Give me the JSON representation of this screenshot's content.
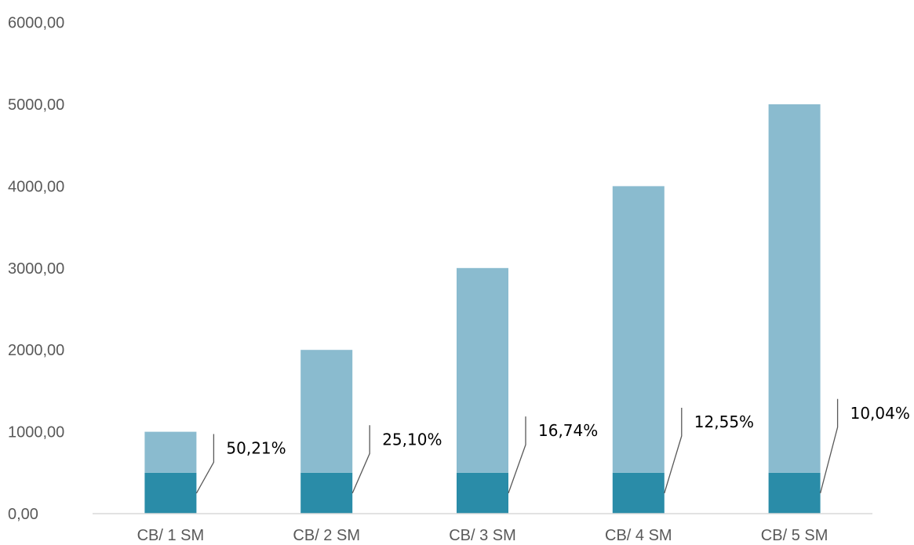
{
  "chart_data": {
    "type": "bar",
    "stacked": true,
    "categories": [
      "CB/ 1 SM",
      "CB/ 2 SM",
      "CB/ 3 SM",
      "CB/ 4 SM",
      "CB/ 5 SM"
    ],
    "series": [
      {
        "values": [
          500,
          500,
          500,
          500,
          500
        ],
        "color": "#2a8ca8"
      },
      {
        "values": [
          500,
          1500,
          2500,
          3500,
          4500
        ],
        "color": "#8abbcf"
      }
    ],
    "totals": [
      1000,
      2000,
      3000,
      4000,
      5000
    ],
    "data_labels": [
      "50,21%",
      "25,10%",
      "16,74%",
      "12,55%",
      "10,04%"
    ],
    "y_tick_labels": [
      "0,00",
      "1000,00",
      "2000,00",
      "3000,00",
      "4000,00",
      "5000,00",
      "6000,00"
    ],
    "ylim": [
      0,
      6000
    ],
    "y_step": 1000,
    "grid": false,
    "legend": "none",
    "title": "",
    "xlabel": "",
    "ylabel": ""
  },
  "colors": {
    "axis": "#d9d9d9",
    "text": "#595959",
    "leader": "#595959"
  }
}
